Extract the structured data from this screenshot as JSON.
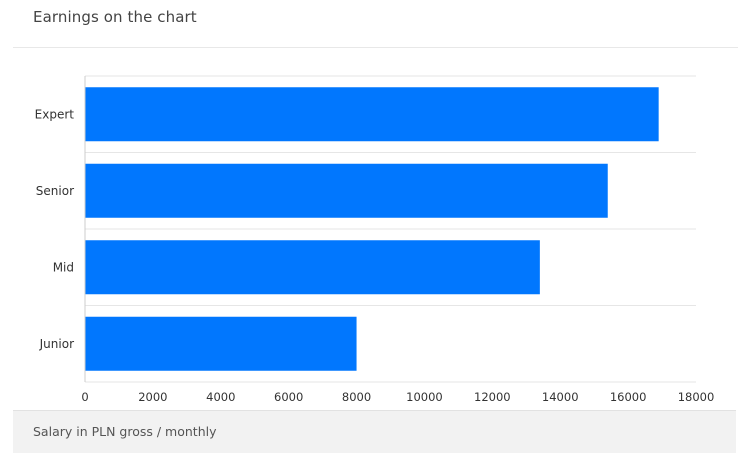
{
  "card": {
    "title": "Earnings on the chart",
    "footer": "Salary in PLN gross / monthly"
  },
  "colors": {
    "bar": "#0177fe",
    "grid": "#e6e6e6",
    "axis": "#cccccc"
  },
  "chart_data": {
    "type": "bar",
    "orientation": "horizontal",
    "categories": [
      "Expert",
      "Senior",
      "Mid",
      "Junior"
    ],
    "values": [
      16900,
      15400,
      13400,
      8000
    ],
    "xlim": [
      0,
      18000
    ],
    "xticks": [
      "0",
      "2000",
      "4000",
      "6000",
      "8000",
      "10000",
      "12000",
      "14000",
      "16000",
      "18000"
    ],
    "xlabel": "",
    "ylabel": "",
    "grid": true
  }
}
